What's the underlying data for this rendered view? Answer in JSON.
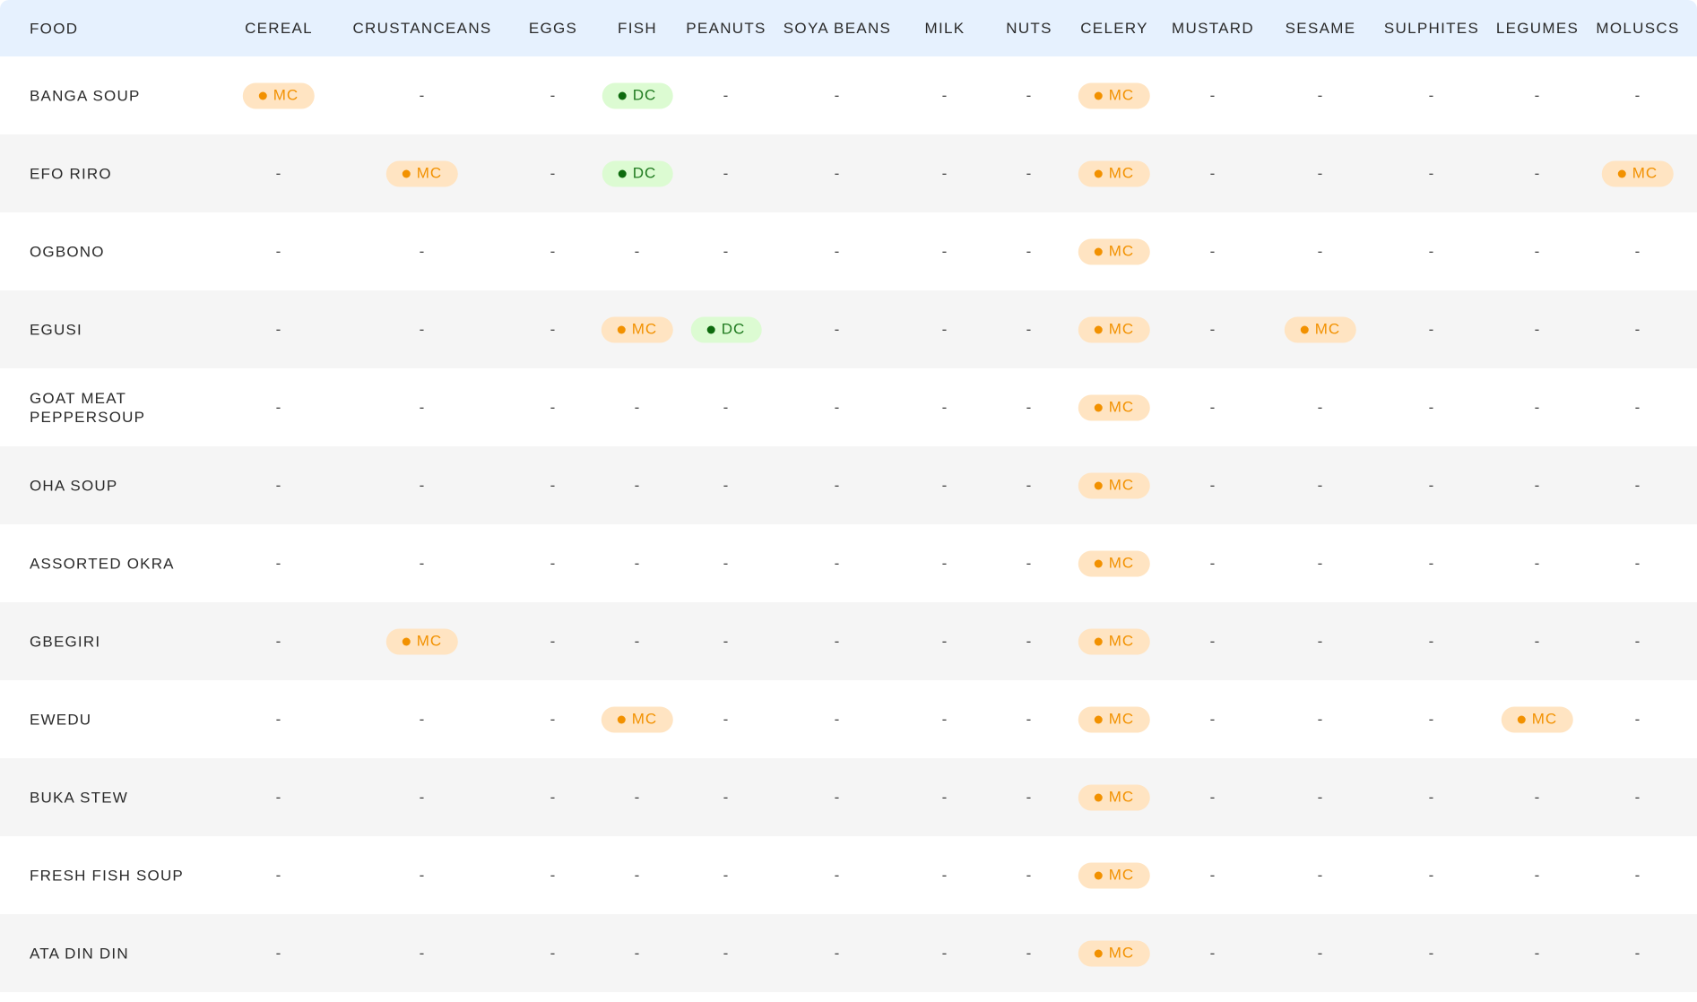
{
  "colors": {
    "mc_bg": "#ffe4c2",
    "mc_text": "#f29100",
    "dc_bg": "#dcfbd2",
    "dc_text": "#1f7a1f",
    "dc_dot": "#0e6b0e",
    "header_bg": "#e6f1fe"
  },
  "columns": [
    "FOOD",
    "CEREAL",
    "CRUSTANCEANS",
    "EGGS",
    "FISH",
    "PEANUTS",
    "SOYA BEANS",
    "MILK",
    "NUTS",
    "CELERY",
    "MUSTARD",
    "SESAME",
    "SULPHITES",
    "LEGUMES",
    "MOLUSCS"
  ],
  "rows": [
    {
      "food": "BANGA SOUP",
      "values": [
        "MC",
        "-",
        "-",
        "DC",
        "-",
        "-",
        "-",
        "-",
        "MC",
        "-",
        "-",
        "-",
        "-",
        "-"
      ]
    },
    {
      "food": "EFO RIRO",
      "values": [
        "-",
        "MC",
        "-",
        "DC",
        "-",
        "-",
        "-",
        "-",
        "MC",
        "-",
        "-",
        "-",
        "-",
        "MC"
      ]
    },
    {
      "food": "OGBONO",
      "values": [
        "-",
        "-",
        "-",
        "-",
        "-",
        "-",
        "-",
        "-",
        "MC",
        "-",
        "-",
        "-",
        "-",
        "-"
      ]
    },
    {
      "food": "EGUSI",
      "values": [
        "-",
        "-",
        "-",
        "MC",
        "DC",
        "-",
        "-",
        "-",
        "MC",
        "-",
        "MC",
        "-",
        "-",
        "-"
      ]
    },
    {
      "food": "GOAT MEAT PEPPERSOUP",
      "values": [
        "-",
        "-",
        "-",
        "-",
        "-",
        "-",
        "-",
        "-",
        "MC",
        "-",
        "-",
        "-",
        "-",
        "-"
      ]
    },
    {
      "food": "OHA SOUP",
      "values": [
        "-",
        "-",
        "-",
        "-",
        "-",
        "-",
        "-",
        "-",
        "MC",
        "-",
        "-",
        "-",
        "-",
        "-"
      ]
    },
    {
      "food": "ASSORTED OKRA",
      "values": [
        "-",
        "-",
        "-",
        "-",
        "-",
        "-",
        "-",
        "-",
        "MC",
        "-",
        "-",
        "-",
        "-",
        "-"
      ]
    },
    {
      "food": "GBEGIRI",
      "values": [
        "-",
        "MC",
        "-",
        "-",
        "-",
        "-",
        "-",
        "-",
        "MC",
        "-",
        "-",
        "-",
        "-",
        "-"
      ]
    },
    {
      "food": "EWEDU",
      "values": [
        "-",
        "-",
        "-",
        "MC",
        "-",
        "-",
        "-",
        "-",
        "MC",
        "-",
        "-",
        "-",
        "MC",
        "-"
      ]
    },
    {
      "food": "BUKA STEW",
      "values": [
        "-",
        "-",
        "-",
        "-",
        "-",
        "-",
        "-",
        "-",
        "MC",
        "-",
        "-",
        "-",
        "-",
        "-"
      ]
    },
    {
      "food": "FRESH FISH SOUP",
      "values": [
        "-",
        "-",
        "-",
        "-",
        "-",
        "-",
        "-",
        "-",
        "MC",
        "-",
        "-",
        "-",
        "-",
        "-"
      ]
    },
    {
      "food": "ATA DIN DIN",
      "values": [
        "-",
        "-",
        "-",
        "-",
        "-",
        "-",
        "-",
        "-",
        "MC",
        "-",
        "-",
        "-",
        "-",
        "-"
      ]
    }
  ]
}
